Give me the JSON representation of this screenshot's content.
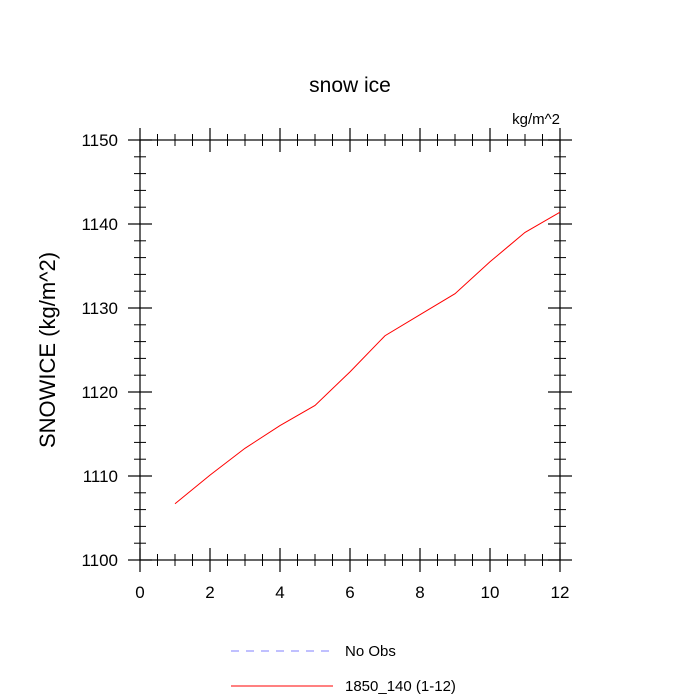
{
  "chart_data": {
    "type": "line",
    "title": "snow ice",
    "units_label": "kg/m^2",
    "ylabel": "SNOWICE  (kg/m^2)",
    "xlabel": "",
    "xlim": [
      0,
      12
    ],
    "ylim": [
      1100,
      1150
    ],
    "xticks": [
      0,
      2,
      4,
      6,
      8,
      10,
      12
    ],
    "yticks": [
      1100,
      1110,
      1120,
      1130,
      1140,
      1150
    ],
    "grid": false,
    "legend_position": "bottom-center",
    "series": [
      {
        "name": "No Obs",
        "style": "dashed",
        "color": "#8080ff",
        "x": [],
        "y": []
      },
      {
        "name": "1850_140 (1-12)",
        "style": "solid",
        "color": "#ff0000",
        "x": [
          1,
          2,
          3,
          4,
          5,
          6,
          7,
          8,
          9,
          10,
          11,
          12
        ],
        "y": [
          1106.7,
          1110.1,
          1113.3,
          1116.0,
          1118.4,
          1122.4,
          1126.7,
          1129.2,
          1131.7,
          1135.5,
          1139.0,
          1141.4
        ]
      }
    ]
  }
}
